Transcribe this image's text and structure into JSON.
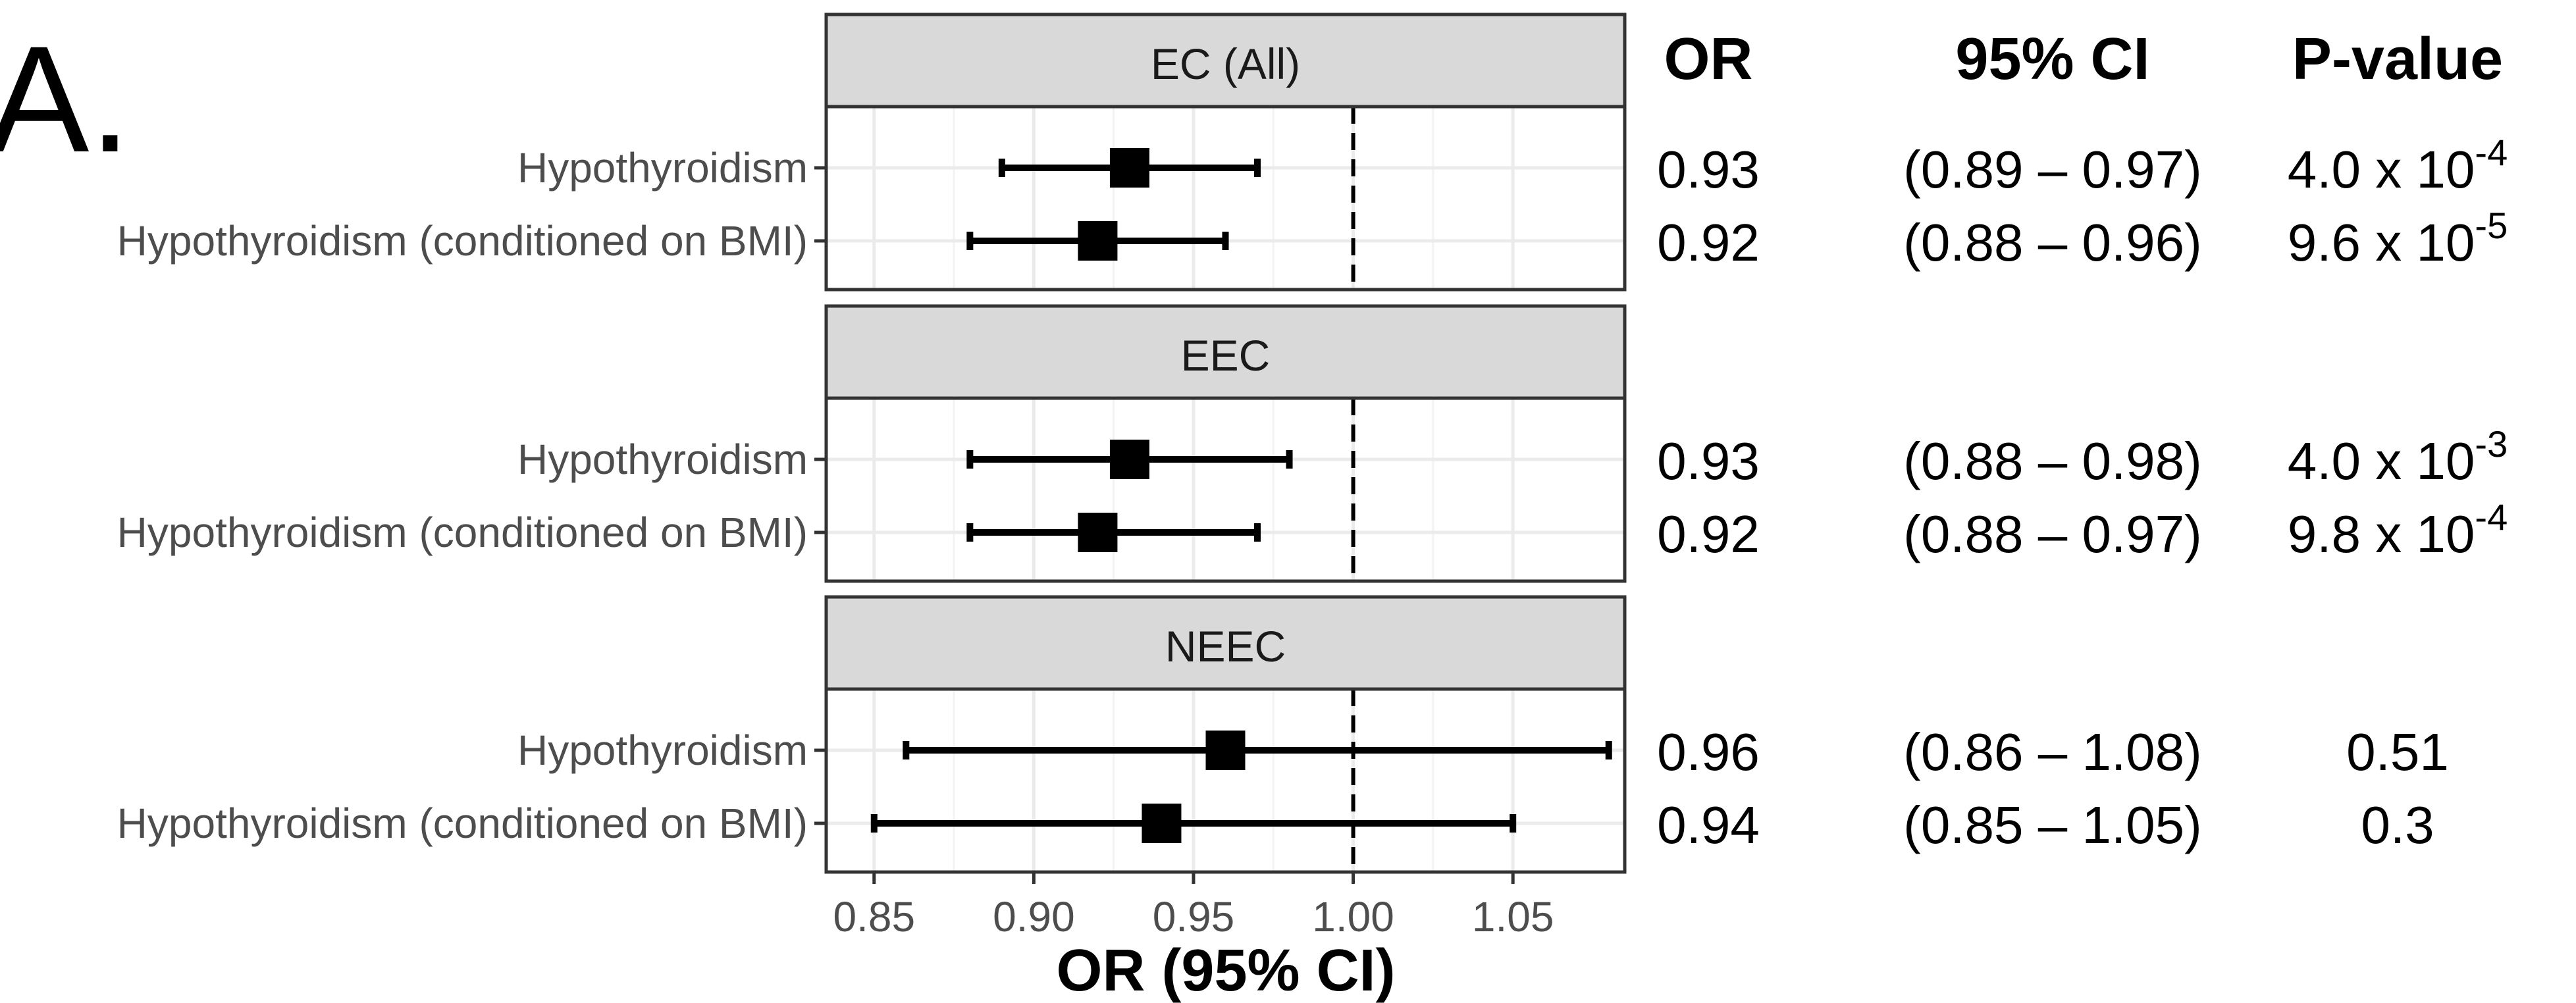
{
  "panel_letter": "A.",
  "columns": {
    "or": "OR",
    "ci": "95% CI",
    "p": "P-value"
  },
  "chart_data": {
    "type": "forest",
    "xlabel": "OR (95% CI)",
    "xlim": [
      0.835,
      1.085
    ],
    "reference_line": 1.0,
    "x_ticks": [
      "0.85",
      "0.90",
      "0.95",
      "1.00",
      "1.05"
    ],
    "x_tick_values": [
      0.85,
      0.9,
      0.95,
      1.0,
      1.05
    ],
    "grid": true,
    "panels": [
      {
        "title": "EC (All)",
        "rows": [
          {
            "label": "Hypothyroidism",
            "or": 0.93,
            "lower": 0.89,
            "upper": 0.97,
            "or_text": "0.93",
            "ci_text": "(0.89 – 0.97)",
            "p_base": "4.0 x 10",
            "p_exp": "-4"
          },
          {
            "label": "Hypothyroidism (conditioned on BMI)",
            "or": 0.92,
            "lower": 0.88,
            "upper": 0.96,
            "or_text": "0.92",
            "ci_text": "(0.88 – 0.96)",
            "p_base": "9.6 x 10",
            "p_exp": "-5"
          }
        ]
      },
      {
        "title": "EEC",
        "rows": [
          {
            "label": "Hypothyroidism",
            "or": 0.93,
            "lower": 0.88,
            "upper": 0.98,
            "or_text": "0.93",
            "ci_text": "(0.88 – 0.98)",
            "p_base": "4.0 x 10",
            "p_exp": "-3"
          },
          {
            "label": "Hypothyroidism (conditioned on BMI)",
            "or": 0.92,
            "lower": 0.88,
            "upper": 0.97,
            "or_text": "0.92",
            "ci_text": "(0.88 – 0.97)",
            "p_base": "9.8 x 10",
            "p_exp": "-4"
          }
        ]
      },
      {
        "title": "NEEC",
        "rows": [
          {
            "label": "Hypothyroidism",
            "or": 0.96,
            "lower": 0.86,
            "upper": 1.08,
            "or_text": "0.96",
            "ci_text": "(0.86 – 1.08)",
            "p_base": "0.51",
            "p_exp": ""
          },
          {
            "label": "Hypothyroidism (conditioned on BMI)",
            "or": 0.94,
            "lower": 0.85,
            "upper": 1.05,
            "or_text": "0.94",
            "ci_text": "(0.85 – 1.05)",
            "p_base": "0.3",
            "p_exp": ""
          }
        ]
      }
    ],
    "colors": {
      "strip": "#d9d9d9",
      "frame": "#333333",
      "grid": "#ebebeb",
      "mark": "#000000",
      "label": "#4d4d4d"
    }
  }
}
